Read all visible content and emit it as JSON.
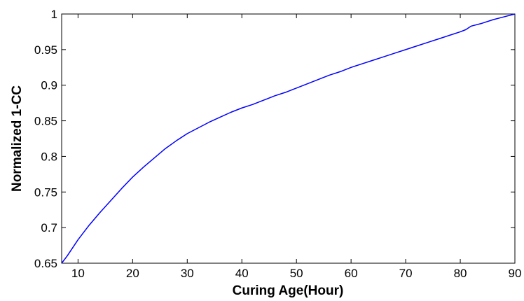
{
  "chart_data": {
    "type": "line",
    "title": "",
    "xlabel": "Curing Age(Hour)",
    "ylabel": "Normalized 1-CC",
    "xlim": [
      7,
      90
    ],
    "ylim": [
      0.65,
      1
    ],
    "grid": false,
    "legend": "none",
    "x_ticks": [
      10,
      20,
      30,
      40,
      50,
      60,
      70,
      80,
      90
    ],
    "x_tick_labels": [
      "10",
      "20",
      "30",
      "40",
      "50",
      "60",
      "70",
      "80",
      "90"
    ],
    "y_ticks": [
      0.65,
      0.7,
      0.75,
      0.8,
      0.85,
      0.9,
      0.95,
      1
    ],
    "y_tick_labels": [
      "0.65",
      "0.7",
      "0.75",
      "0.8",
      "0.85",
      "0.9",
      "0.95",
      "1"
    ],
    "series": [
      {
        "color": "#0000ff",
        "x": [
          7,
          8,
          10,
          12,
          14,
          16,
          18,
          20,
          22,
          24,
          26,
          28,
          30,
          32,
          34,
          36,
          38,
          40,
          42,
          44,
          46,
          48,
          50,
          52,
          54,
          56,
          58,
          60,
          62,
          64,
          66,
          68,
          70,
          72,
          74,
          76,
          78,
          80,
          81,
          82,
          84,
          86,
          88,
          90
        ],
        "y": [
          0.65,
          0.66,
          0.683,
          0.703,
          0.721,
          0.738,
          0.755,
          0.771,
          0.785,
          0.798,
          0.811,
          0.822,
          0.832,
          0.84,
          0.848,
          0.855,
          0.862,
          0.868,
          0.873,
          0.879,
          0.885,
          0.89,
          0.896,
          0.902,
          0.908,
          0.914,
          0.919,
          0.925,
          0.93,
          0.935,
          0.94,
          0.945,
          0.95,
          0.955,
          0.96,
          0.965,
          0.97,
          0.975,
          0.978,
          0.983,
          0.987,
          0.992,
          0.996,
          1.0
        ]
      }
    ]
  }
}
